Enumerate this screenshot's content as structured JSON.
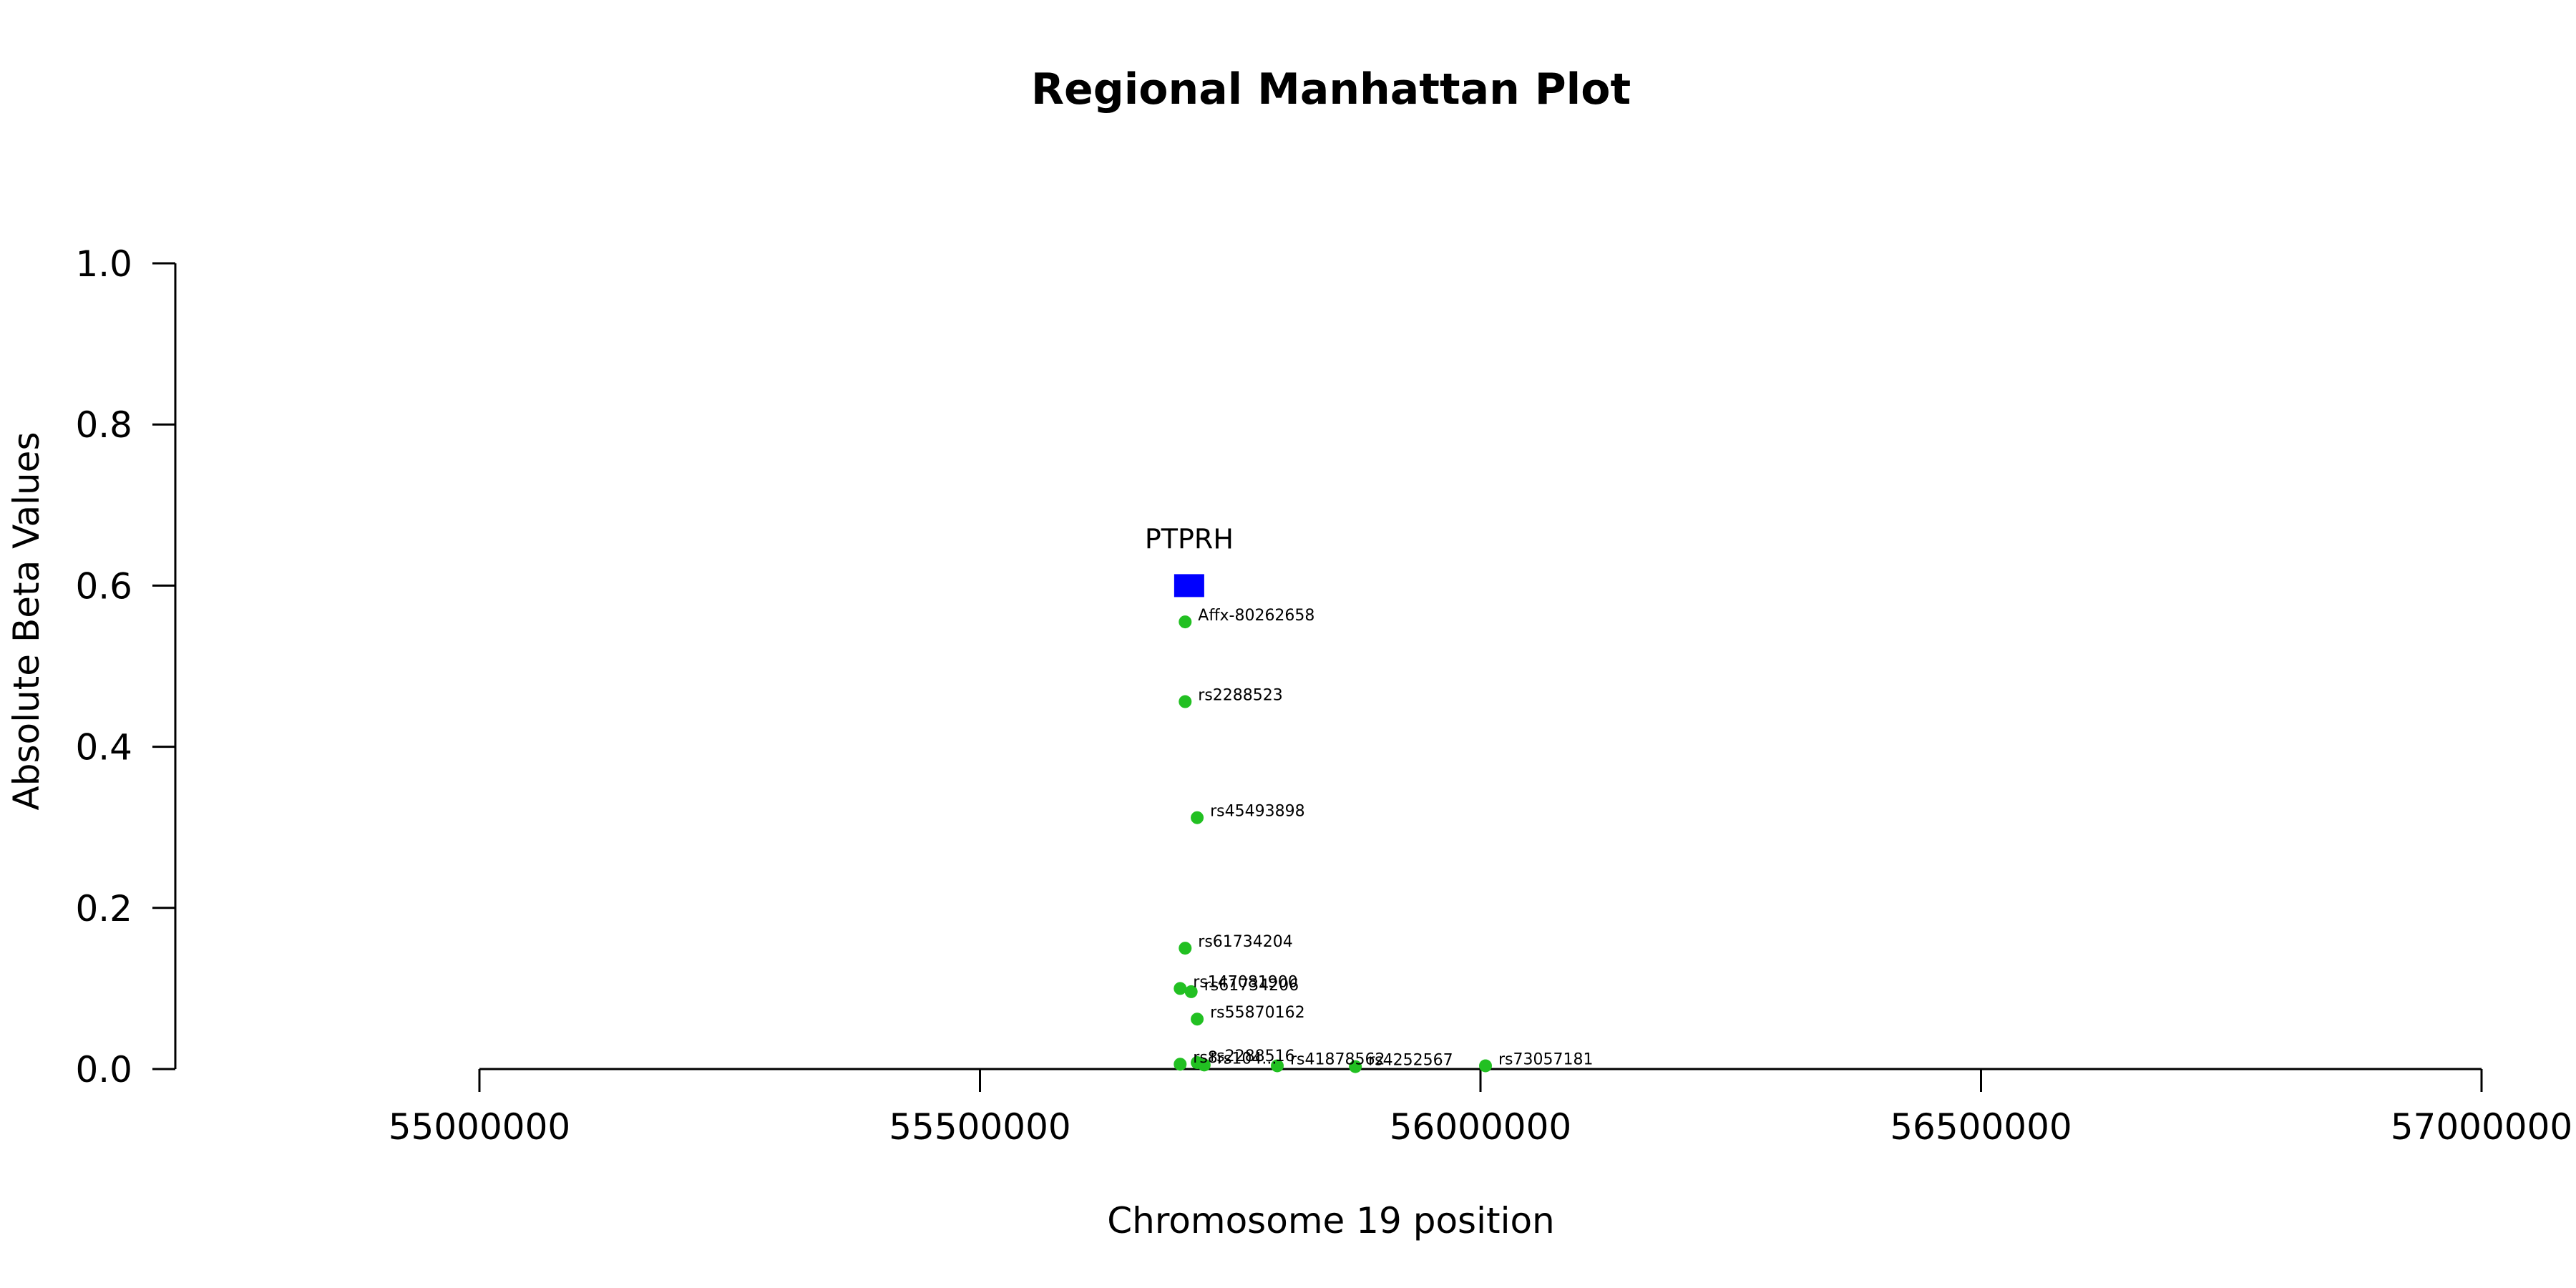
{
  "chart_data": {
    "type": "scatter",
    "title": "Regional Manhattan Plot",
    "xlabel": "Chromosome 19 position",
    "ylabel": "Absolute Beta Values",
    "xlim": [
      54700000,
      57000000
    ],
    "ylim": [
      0,
      1.0
    ],
    "x_ticks": [
      55000000,
      55500000,
      56000000,
      56500000,
      57000000
    ],
    "x_tick_labels": [
      "55000000",
      "55500000",
      "56000000",
      "56500000",
      "57000000"
    ],
    "y_ticks": [
      0.0,
      0.2,
      0.4,
      0.6,
      0.8,
      1.0
    ],
    "y_tick_labels": [
      "0.0",
      "0.2",
      "0.4",
      "0.6",
      "0.8",
      "1.0"
    ],
    "grid": false,
    "point_color": "#22c022",
    "gene_color": "#0000ff",
    "genes": [
      {
        "label": "PTPRH",
        "x": 55709000,
        "y": 0.6
      }
    ],
    "series": [
      {
        "points": [
          {
            "label": "Affx-80262658",
            "x": 55705000,
            "y": 0.555
          },
          {
            "label": "rs2288523",
            "x": 55705000,
            "y": 0.456
          },
          {
            "label": "rs45493898",
            "x": 55717000,
            "y": 0.312
          },
          {
            "label": "rs61734204",
            "x": 55705000,
            "y": 0.15
          },
          {
            "label": "rs147081900",
            "x": 55700000,
            "y": 0.1
          },
          {
            "label": "rs61734206",
            "x": 55711000,
            "y": 0.096
          },
          {
            "label": "rs55870162",
            "x": 55717000,
            "y": 0.062
          },
          {
            "label": "rs2288516",
            "x": 55717000,
            "y": 0.008
          },
          {
            "label": "rs8...",
            "x": 55700000,
            "y": 0.006
          },
          {
            "label": "rs104...",
            "x": 55724000,
            "y": 0.005
          },
          {
            "label": "rs41878562",
            "x": 55797000,
            "y": 0.004
          },
          {
            "label": "rs4252567",
            "x": 55875000,
            "y": 0.003
          },
          {
            "label": "rs73057181",
            "x": 56005000,
            "y": 0.004
          }
        ]
      }
    ]
  }
}
